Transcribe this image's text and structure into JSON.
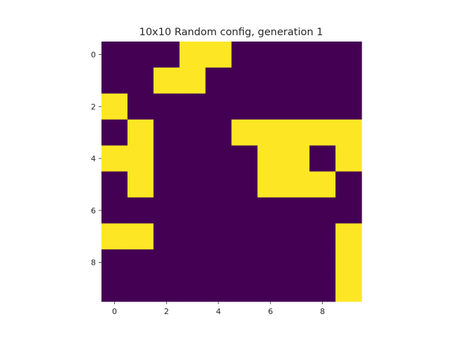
{
  "chart_data": {
    "type": "heatmap",
    "title": "10x10 Random config, generation 1",
    "xlabel": "",
    "ylabel": "",
    "rows": 10,
    "cols": 10,
    "xticks": [
      0,
      2,
      4,
      6,
      8
    ],
    "yticks": [
      0,
      2,
      4,
      6,
      8
    ],
    "colormap": {
      "0": "#440154",
      "1": "#fde725"
    },
    "grid": false,
    "values": [
      [
        0,
        0,
        0,
        1,
        1,
        0,
        0,
        0,
        0,
        0
      ],
      [
        0,
        0,
        1,
        1,
        0,
        0,
        0,
        0,
        0,
        0
      ],
      [
        1,
        0,
        0,
        0,
        0,
        0,
        0,
        0,
        0,
        0
      ],
      [
        0,
        1,
        0,
        0,
        0,
        1,
        1,
        1,
        1,
        1
      ],
      [
        1,
        1,
        0,
        0,
        0,
        0,
        1,
        1,
        0,
        1
      ],
      [
        0,
        1,
        0,
        0,
        0,
        0,
        1,
        1,
        1,
        0
      ],
      [
        0,
        0,
        0,
        0,
        0,
        0,
        0,
        0,
        0,
        0
      ],
      [
        1,
        1,
        0,
        0,
        0,
        0,
        0,
        0,
        0,
        1
      ],
      [
        0,
        0,
        0,
        0,
        0,
        0,
        0,
        0,
        0,
        1
      ],
      [
        0,
        0,
        0,
        0,
        0,
        0,
        0,
        0,
        0,
        1
      ]
    ]
  }
}
